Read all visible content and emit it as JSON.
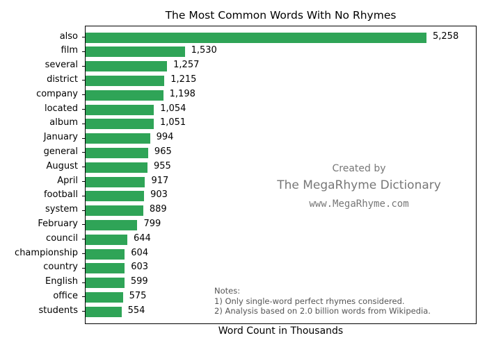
{
  "chart_data": {
    "type": "bar",
    "orientation": "horizontal",
    "title": "The Most Common Words With No Rhymes",
    "xlabel": "Word Count in Thousands",
    "ylabel": "",
    "categories": [
      "also",
      "film",
      "several",
      "district",
      "company",
      "located",
      "album",
      "January",
      "general",
      "August",
      "April",
      "football",
      "system",
      "February",
      "council",
      "championship",
      "country",
      "English",
      "office",
      "students"
    ],
    "values": [
      5258,
      1530,
      1257,
      1215,
      1198,
      1054,
      1051,
      994,
      965,
      955,
      917,
      903,
      889,
      799,
      644,
      604,
      603,
      599,
      575,
      554
    ],
    "value_labels": [
      "5,258",
      "1,530",
      "1,257",
      "1,215",
      "1,198",
      "1,054",
      "1,051",
      "994",
      "965",
      "955",
      "917",
      "903",
      "889",
      "799",
      "644",
      "604",
      "603",
      "599",
      "575",
      "554"
    ],
    "bar_color": "#2fa457",
    "xlim": [
      0,
      6040
    ],
    "grid": false,
    "x_ticks_visible": false
  },
  "annotations": {
    "created_by": "Created by",
    "dictionary": "The MegaRhyme Dictionary",
    "website": "www.MegaRhyme.com",
    "notes_header": "Notes:",
    "note1": "1) Only single-word perfect rhymes considered.",
    "note2": "2) Analysis based on 2.0 billion words from Wikipedia."
  }
}
